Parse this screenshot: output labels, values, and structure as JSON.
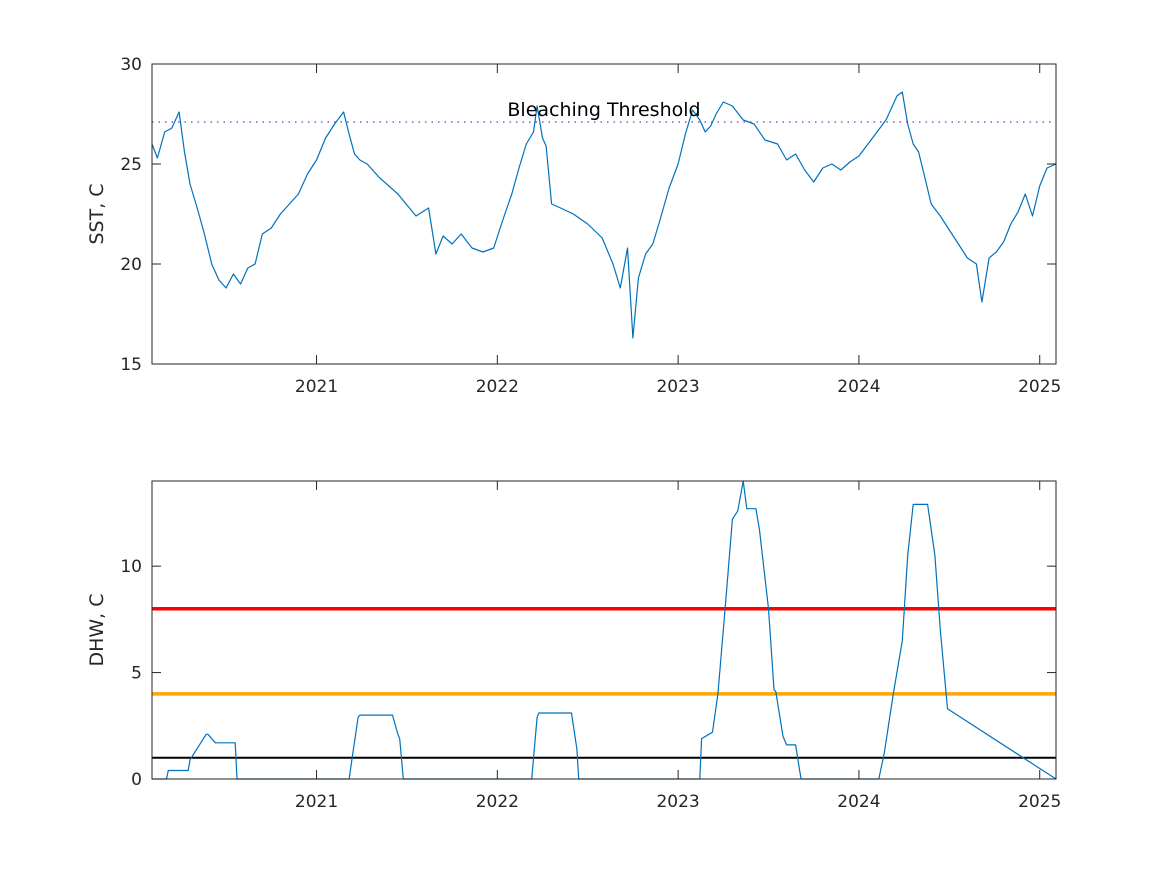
{
  "chart_data": [
    {
      "type": "line",
      "title": "",
      "xlabel": "",
      "ylabel": "SST, C",
      "xlim": [
        2020.09,
        2025.09
      ],
      "ylim": [
        15,
        30
      ],
      "x_ticks": [
        2021,
        2022,
        2023,
        2024,
        2025
      ],
      "x_tick_labels": [
        "2021",
        "2022",
        "2023",
        "2024",
        "2025"
      ],
      "y_ticks": [
        15,
        20,
        25,
        30
      ],
      "y_tick_labels": [
        "15",
        "20",
        "25",
        "30"
      ],
      "grid": false,
      "legend": "none",
      "colors": {
        "series": "#0072BD",
        "threshold": "#7E2FCC"
      },
      "threshold": {
        "value": 27.1,
        "label": "Bleaching Threshold",
        "style": "dotted"
      },
      "series": [
        {
          "x": [
            2020.09,
            2020.12,
            2020.16,
            2020.2,
            2020.24,
            2020.27,
            2020.3,
            2020.34,
            2020.38,
            2020.42,
            2020.46,
            2020.5,
            2020.54,
            2020.58,
            2020.62,
            2020.66,
            2020.7,
            2020.75,
            2020.8,
            2020.85,
            2020.9,
            2020.95,
            2021.0,
            2021.05,
            2021.1,
            2021.15,
            2021.18,
            2021.21,
            2021.24,
            2021.28,
            2021.35,
            2021.45,
            2021.55,
            2021.62,
            2021.66,
            2021.7,
            2021.75,
            2021.8,
            2021.86,
            2021.92,
            2021.98,
            2022.03,
            2022.08,
            2022.12,
            2022.16,
            2022.2,
            2022.22,
            2022.25,
            2022.27,
            2022.3,
            2022.35,
            2022.42,
            2022.5,
            2022.58,
            2022.64,
            2022.68,
            2022.72,
            2022.75,
            2022.78,
            2022.82,
            2022.86,
            2022.9,
            2022.95,
            2023.0,
            2023.04,
            2023.08,
            2023.12,
            2023.15,
            2023.18,
            2023.21,
            2023.25,
            2023.3,
            2023.36,
            2023.42,
            2023.48,
            2023.55,
            2023.6,
            2023.65,
            2023.7,
            2023.75,
            2023.8,
            2023.85,
            2023.9,
            2023.95,
            2024.0,
            2024.05,
            2024.1,
            2024.15,
            2024.18,
            2024.21,
            2024.24,
            2024.27,
            2024.3,
            2024.33,
            2024.36,
            2024.4,
            2024.45,
            2024.5,
            2024.55,
            2024.6,
            2024.65,
            2024.68,
            2024.72,
            2024.76,
            2024.8,
            2024.84,
            2024.88,
            2024.92,
            2024.96,
            2025.0,
            2025.04,
            2025.09
          ],
          "values": [
            26.0,
            25.3,
            26.6,
            26.8,
            27.6,
            25.6,
            24.0,
            22.8,
            21.5,
            20.0,
            19.2,
            18.8,
            19.5,
            19.0,
            19.8,
            20.0,
            21.5,
            21.8,
            22.5,
            23.0,
            23.5,
            24.5,
            25.2,
            26.3,
            27.0,
            27.6,
            26.5,
            25.5,
            25.2,
            25.0,
            24.3,
            23.5,
            22.4,
            22.8,
            20.5,
            21.4,
            21.0,
            21.5,
            20.8,
            20.6,
            20.8,
            22.2,
            23.5,
            24.8,
            26.0,
            26.6,
            27.9,
            26.3,
            25.9,
            23.0,
            22.8,
            22.5,
            22.0,
            21.3,
            20.0,
            18.8,
            20.8,
            16.3,
            19.3,
            20.5,
            21.0,
            22.2,
            23.8,
            25.0,
            26.5,
            27.7,
            27.2,
            26.6,
            26.9,
            27.5,
            28.1,
            27.9,
            27.2,
            27.0,
            26.2,
            26.0,
            25.2,
            25.5,
            24.7,
            24.1,
            24.8,
            25.0,
            24.7,
            25.1,
            25.4,
            26.0,
            26.6,
            27.2,
            27.8,
            28.4,
            28.6,
            27.0,
            26.0,
            25.6,
            24.5,
            23.0,
            22.4,
            21.7,
            21.0,
            20.3,
            20.0,
            18.1,
            20.3,
            20.6,
            21.1,
            22.0,
            22.6,
            23.5,
            22.4,
            23.9,
            24.8,
            25.0
          ]
        }
      ]
    },
    {
      "type": "line",
      "title": "",
      "xlabel": "",
      "ylabel": "DHW, C",
      "xlim": [
        2020.09,
        2025.09
      ],
      "ylim": [
        0,
        14
      ],
      "x_ticks": [
        2021,
        2022,
        2023,
        2024,
        2025
      ],
      "x_tick_labels": [
        "2021",
        "2022",
        "2023",
        "2024",
        "2025"
      ],
      "y_ticks": [
        0,
        5,
        10
      ],
      "y_tick_labels": [
        "0",
        "5",
        "10"
      ],
      "grid": false,
      "legend": "none",
      "colors": {
        "series": "#0072BD"
      },
      "reference_lines": [
        {
          "value": 8,
          "color": "#FF0000"
        },
        {
          "value": 4,
          "color": "#FFA500"
        },
        {
          "value": 1,
          "color": "#000000"
        }
      ],
      "series": [
        {
          "x": [
            2020.09,
            2020.17,
            2020.18,
            2020.29,
            2020.3,
            2020.39,
            2020.4,
            2020.44,
            2020.55,
            2020.56,
            2021.18,
            2021.23,
            2021.24,
            2021.42,
            2021.45,
            2021.46,
            2021.48,
            2022.19,
            2022.22,
            2022.23,
            2022.41,
            2022.44,
            2022.45,
            2023.12,
            2023.13,
            2023.19,
            2023.22,
            2023.26,
            2023.3,
            2023.33,
            2023.36,
            2023.38,
            2023.43,
            2023.45,
            2023.5,
            2023.53,
            2023.54,
            2023.58,
            2023.6,
            2023.65,
            2023.67,
            2023.68,
            2024.11,
            2024.14,
            2024.19,
            2024.24,
            2024.27,
            2024.3,
            2024.38,
            2024.42,
            2024.45,
            2024.49,
            2025.09
          ],
          "values": [
            0,
            0,
            0.4,
            0.4,
            0.9,
            2.1,
            2.1,
            1.7,
            1.7,
            0,
            0,
            2.9,
            3.0,
            3.0,
            2.1,
            1.9,
            0,
            0,
            2.9,
            3.1,
            3.1,
            1.4,
            0,
            0,
            1.9,
            2.2,
            4.0,
            8.0,
            12.2,
            12.6,
            14.0,
            12.7,
            12.7,
            11.7,
            8.0,
            4.2,
            4.1,
            2.0,
            1.6,
            1.6,
            0.5,
            0,
            0,
            1.2,
            4.0,
            6.5,
            10.5,
            12.9,
            12.9,
            10.5,
            7.0,
            3.3,
            0
          ]
        }
      ]
    }
  ]
}
